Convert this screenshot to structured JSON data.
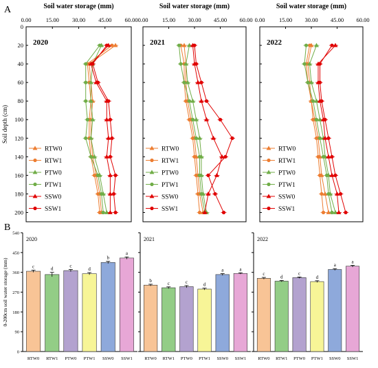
{
  "panel_labels": [
    "A",
    "B"
  ],
  "colors": {
    "RTW0": "#ED7D31",
    "RTW1": "#ED7D31",
    "PTW0": "#70AD47",
    "PTW1": "#70AD47",
    "SSW0": "#E00000",
    "SSW1": "#E00000",
    "bar_fills": [
      "#F8C496",
      "#93CD86",
      "#B3A2CF",
      "#F7F597",
      "#8EA9DB",
      "#E7A7D6"
    ]
  },
  "chart_data": [
    {
      "type": "line",
      "panel": "A",
      "title": "2020",
      "xlabel": "Soil water storage (mm)",
      "ylabel": "Soil depth (cm)",
      "xlim": [
        0,
        60
      ],
      "ylim": [
        0,
        210
      ],
      "x_ticks": [
        "0.00",
        "15.00",
        "30.00",
        "45.00",
        "60.00"
      ],
      "y_ticks": [
        "0",
        "20",
        "40",
        "60",
        "80",
        "100",
        "120",
        "140",
        "160",
        "180",
        "200"
      ],
      "depths": [
        20,
        40,
        60,
        80,
        100,
        120,
        140,
        160,
        180,
        200
      ],
      "series": [
        {
          "name": "RTW0",
          "values": [
            51,
            36,
            37,
            38,
            37,
            37,
            38,
            40,
            42,
            43
          ]
        },
        {
          "name": "RTW1",
          "values": [
            49,
            35,
            36,
            37,
            36,
            36,
            37,
            39,
            41,
            42
          ]
        },
        {
          "name": "PTW0",
          "values": [
            43,
            38,
            37,
            37,
            38,
            37,
            39,
            42,
            44,
            46
          ]
        },
        {
          "name": "PTW1",
          "values": [
            42,
            34,
            34,
            34,
            35,
            34,
            37,
            41,
            43,
            44
          ]
        },
        {
          "name": "SSW0",
          "values": [
            47,
            37,
            40,
            46,
            46,
            47,
            46,
            48,
            48,
            48
          ]
        },
        {
          "name": "SSW1",
          "values": [
            46,
            38,
            41,
            47,
            48,
            49,
            48,
            51,
            50,
            51
          ]
        }
      ]
    },
    {
      "type": "line",
      "panel": "A",
      "title": "2021",
      "xlabel": "Soil water storage (mm)",
      "xlim": [
        0,
        60
      ],
      "ylim": [
        0,
        210
      ],
      "x_ticks": [
        "0.00",
        "15.00",
        "30.00",
        "45.00",
        "60.00"
      ],
      "depths": [
        20,
        40,
        60,
        80,
        100,
        120,
        140,
        160,
        180,
        200
      ],
      "series": [
        {
          "name": "RTW0",
          "values": [
            24,
            25,
            25,
            26,
            28,
            30,
            31,
            32,
            33,
            35
          ]
        },
        {
          "name": "RTW1",
          "values": [
            22,
            24,
            24,
            25,
            27,
            29,
            30,
            31,
            32,
            33
          ]
        },
        {
          "name": "PTW0",
          "values": [
            27,
            25,
            26,
            29,
            31,
            33,
            34,
            34,
            35,
            37
          ]
        },
        {
          "name": "PTW1",
          "values": [
            21,
            22,
            24,
            27,
            29,
            31,
            33,
            33,
            34,
            36
          ]
        },
        {
          "name": "SSW0",
          "values": [
            29,
            30,
            32,
            34,
            37,
            41,
            46,
            43,
            38,
            36
          ]
        },
        {
          "name": "SSW1",
          "values": [
            30,
            31,
            34,
            37,
            45,
            52,
            48,
            38,
            42,
            47
          ]
        }
      ]
    },
    {
      "type": "line",
      "panel": "A",
      "title": "2022",
      "xlabel": "Soil water storage (mm)",
      "xlim": [
        0,
        60
      ],
      "ylim": [
        0,
        210
      ],
      "x_ticks": [
        "0.00",
        "15.00",
        "30.00",
        "45.00",
        "60.00"
      ],
      "depths": [
        20,
        40,
        60,
        80,
        100,
        120,
        140,
        160,
        180,
        200
      ],
      "series": [
        {
          "name": "RTW0",
          "values": [
            30,
            28,
            29,
            30,
            32,
            34,
            35,
            36,
            38,
            40
          ]
        },
        {
          "name": "RTW1",
          "values": [
            29,
            27,
            28,
            30,
            31,
            33,
            34,
            35,
            36,
            37
          ]
        },
        {
          "name": "PTW0",
          "values": [
            33,
            29,
            30,
            33,
            35,
            37,
            38,
            40,
            41,
            44
          ]
        },
        {
          "name": "PTW1",
          "values": [
            27,
            26,
            28,
            31,
            33,
            35,
            37,
            39,
            40,
            42
          ]
        },
        {
          "name": "SSW0",
          "values": [
            44,
            34,
            34,
            35,
            37,
            38,
            40,
            42,
            45,
            46
          ]
        },
        {
          "name": "SSW1",
          "values": [
            42,
            35,
            35,
            36,
            38,
            40,
            42,
            44,
            47,
            50
          ]
        }
      ]
    },
    {
      "type": "bar",
      "panel": "B",
      "title": "2020",
      "ylabel": "0-200cm soil water storage (mm)",
      "ylim": [
        0,
        540
      ],
      "y_ticks": [
        "0",
        "90",
        "180",
        "270",
        "360",
        "450",
        "540"
      ],
      "categories": [
        "RTW0",
        "RTW1",
        "PTW0",
        "PTW1",
        "SSW0",
        "SSW1"
      ],
      "values": [
        365,
        350,
        368,
        354,
        405,
        425
      ],
      "errors": [
        5,
        10,
        5,
        5,
        5,
        5
      ],
      "letters": [
        "c",
        "d",
        "c",
        "d",
        "b",
        "a"
      ]
    },
    {
      "type": "bar",
      "panel": "B",
      "title": "2021",
      "ylim": [
        0,
        540
      ],
      "categories": [
        "RTW0",
        "RTW1",
        "PTW0",
        "PTW1",
        "SSW0",
        "SSW1"
      ],
      "values": [
        302,
        290,
        295,
        284,
        350,
        355
      ],
      "errors": [
        4,
        4,
        5,
        4,
        4,
        3
      ],
      "letters": [
        "b",
        "c",
        "c",
        "d",
        "a",
        "a"
      ]
    },
    {
      "type": "bar",
      "panel": "B",
      "title": "2022",
      "ylim": [
        0,
        540
      ],
      "categories": [
        "RTW0",
        "RTW1",
        "PTW0",
        "PTW1",
        "SSW0",
        "SSW1"
      ],
      "values": [
        333,
        320,
        336,
        318,
        373,
        388
      ],
      "errors": [
        4,
        3,
        3,
        4,
        4,
        4
      ],
      "letters": [
        "c",
        "d",
        "c",
        "d",
        "a",
        "a"
      ]
    }
  ]
}
